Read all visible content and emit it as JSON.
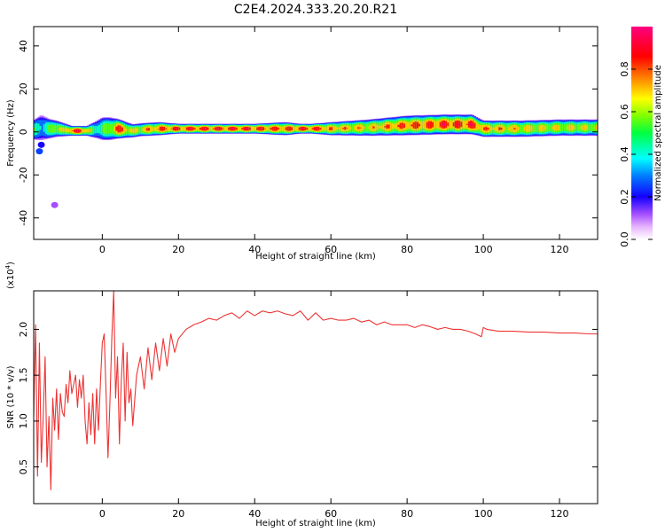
{
  "title": "C2E4.2024.333.20.20.R21",
  "chart_data": [
    {
      "type": "heatmap",
      "xlabel": "Height of straight line (km)",
      "ylabel": "Frequency (Hz)",
      "xlim": [
        -18,
        130
      ],
      "ylim": [
        -50,
        49
      ],
      "xticks": [
        0,
        20,
        40,
        60,
        80,
        100,
        120
      ],
      "yticks": [
        -40,
        -20,
        0,
        20,
        40
      ],
      "colorbar": {
        "label": "Normalized spectral amplitude",
        "range": [
          0,
          1
        ],
        "ticks": [
          0.0,
          0.2,
          0.4,
          0.6,
          0.8
        ]
      },
      "band": {
        "x": [
          -18,
          -16,
          -14,
          -12,
          -10,
          -8,
          -6,
          -4,
          -2,
          0,
          2,
          4,
          6,
          8,
          10,
          15,
          20,
          30,
          40,
          48,
          52,
          55,
          60,
          70,
          80,
          90,
          97,
          100,
          110,
          120,
          130
        ],
        "center_hz": [
          1,
          2,
          1.5,
          1.5,
          1,
          0.5,
          0.5,
          0.5,
          1,
          1.5,
          1.5,
          1.5,
          1,
          0.5,
          1,
          1.5,
          1.5,
          1.5,
          1.5,
          1.5,
          1.5,
          1.5,
          1.5,
          2,
          3,
          3.5,
          3.5,
          1.5,
          1.5,
          2,
          2
        ],
        "halfwidth_hz": [
          3,
          4,
          3,
          2.5,
          2,
          1.5,
          1.5,
          1.5,
          2.5,
          3.5,
          3.5,
          3,
          2.5,
          2,
          2,
          2,
          1.5,
          1.5,
          1.5,
          2,
          1.5,
          1.5,
          2,
          2.5,
          3,
          3,
          3,
          2.5,
          2.5,
          2.5,
          2.5
        ],
        "peak_amplitude": [
          0.55,
          0.45,
          0.6,
          0.8,
          0.7,
          0.95,
          0.95,
          0.85,
          0.5,
          0.6,
          0.7,
          0.95,
          0.85,
          0.75,
          0.8,
          0.9,
          0.95,
          0.95,
          0.95,
          0.9,
          0.95,
          0.95,
          0.85,
          0.8,
          0.9,
          0.95,
          0.95,
          0.85,
          0.8,
          0.75,
          0.75
        ]
      },
      "spots": [
        {
          "x": -16,
          "y": -6,
          "amp": 0.2
        },
        {
          "x": -16.5,
          "y": -9,
          "amp": 0.25
        },
        {
          "x": -12.5,
          "y": -34,
          "amp": 0.12
        }
      ]
    },
    {
      "type": "line",
      "xlabel": "Height of straight line (km)",
      "ylabel": "SNR (10 * v/v)",
      "yscale_label": "(x10^4)",
      "xlim": [
        -18,
        130
      ],
      "ylim": [
        0.1,
        2.42
      ],
      "xticks": [
        0,
        20,
        40,
        60,
        80,
        100,
        120
      ],
      "yticks": [
        0.5,
        1.0,
        1.5,
        2.0
      ],
      "line_color": "#ee3333",
      "series": [
        {
          "x": [
            -18,
            -17.5,
            -17,
            -16.5,
            -16,
            -15.5,
            -15,
            -14.5,
            -14,
            -13.5,
            -13,
            -12.5,
            -12,
            -11.5,
            -11,
            -10.5,
            -10,
            -9.5,
            -9,
            -8.5,
            -8,
            -7.5,
            -7,
            -6.5,
            -6,
            -5.5,
            -5,
            -4.5,
            -4,
            -3.5,
            -3,
            -2.5,
            -2,
            -1.5,
            -1,
            -0.5,
            0,
            0.5,
            1,
            1.5,
            2,
            2.5,
            3,
            3.5,
            4,
            4.5,
            5,
            5.5,
            6,
            6.5,
            7,
            7.5,
            8,
            9,
            10,
            11,
            12,
            13,
            14,
            15,
            16,
            17,
            18,
            19,
            20,
            22,
            24,
            26,
            28,
            30,
            32,
            34,
            36,
            38,
            40,
            42,
            44,
            46,
            48,
            50,
            52,
            54,
            56,
            58,
            60,
            62,
            64,
            66,
            68,
            70,
            72,
            74,
            76,
            78,
            80,
            82,
            84,
            86,
            88,
            90,
            92,
            94,
            96,
            98,
            99.5,
            100,
            101,
            104,
            108,
            112,
            116,
            120,
            124,
            128,
            130
          ],
          "y": [
            1.05,
            2.05,
            0.4,
            1.85,
            0.55,
            1.05,
            1.7,
            0.5,
            1.05,
            0.25,
            1.25,
            0.9,
            1.35,
            0.8,
            1.3,
            1.1,
            1.05,
            1.4,
            1.2,
            1.55,
            1.3,
            1.4,
            1.5,
            1.15,
            1.45,
            1.25,
            1.5,
            1.0,
            0.75,
            1.2,
            0.85,
            1.3,
            0.75,
            1.35,
            0.9,
            1.4,
            1.85,
            1.95,
            1.3,
            0.6,
            1.2,
            1.9,
            2.42,
            1.25,
            1.7,
            0.75,
            1.45,
            1.85,
            1.0,
            1.75,
            1.2,
            1.35,
            0.95,
            1.5,
            1.7,
            1.35,
            1.8,
            1.45,
            1.85,
            1.55,
            1.9,
            1.6,
            1.95,
            1.75,
            1.9,
            2.0,
            2.05,
            2.08,
            2.12,
            2.1,
            2.15,
            2.18,
            2.12,
            2.2,
            2.15,
            2.2,
            2.18,
            2.2,
            2.17,
            2.15,
            2.2,
            2.1,
            2.18,
            2.1,
            2.12,
            2.1,
            2.1,
            2.12,
            2.08,
            2.1,
            2.05,
            2.08,
            2.05,
            2.05,
            2.05,
            2.02,
            2.05,
            2.03,
            2.0,
            2.02,
            2.0,
            2.0,
            1.98,
            1.95,
            1.92,
            2.02,
            2.0,
            1.98,
            1.98,
            1.97,
            1.97,
            1.96,
            1.96,
            1.95,
            1.95
          ]
        }
      ]
    }
  ]
}
